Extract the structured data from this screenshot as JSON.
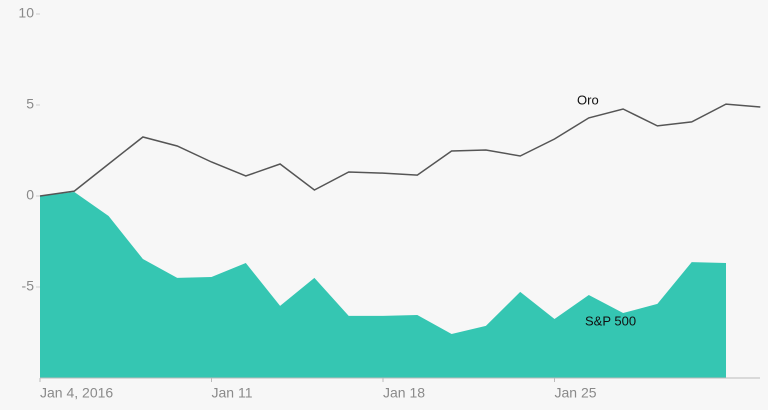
{
  "chart_data": {
    "type": "line-area",
    "categories": [
      "Jan 4, 2016",
      null,
      null,
      null,
      null,
      "Jan 11",
      null,
      null,
      null,
      null,
      "Jan 18",
      null,
      null,
      null,
      null,
      "Jan 25",
      null,
      null,
      null,
      null,
      null,
      null
    ],
    "series": [
      {
        "name": "Oro",
        "color": "#555555",
        "style": "line",
        "values": [
          0,
          0.27,
          1.76,
          3.24,
          2.75,
          1.87,
          1.1,
          1.76,
          0.33,
          1.32,
          1.26,
          1.15,
          2.47,
          2.53,
          2.2,
          3.13,
          4.29,
          4.78,
          3.85,
          4.07,
          5.05,
          4.89
        ]
      },
      {
        "name": "S&P 500",
        "color": "#35c6b2",
        "style": "area",
        "values": [
          0,
          0.22,
          -1.1,
          -3.46,
          -4.5,
          -4.45,
          -3.68,
          -6.04,
          -4.5,
          -6.59,
          -6.59,
          -6.54,
          -7.58,
          -7.14,
          -5.27,
          -6.76,
          -5.44,
          -6.43,
          -5.93,
          -3.63,
          -3.68,
          null
        ]
      }
    ],
    "ylim": [
      -10,
      10
    ],
    "yticks": [
      -5,
      0,
      5,
      10
    ]
  }
}
